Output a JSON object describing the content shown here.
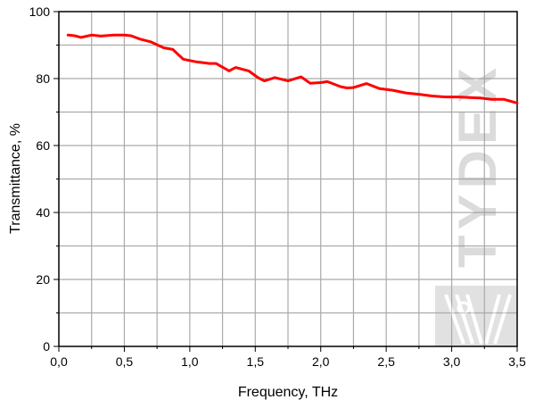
{
  "chart_data": {
    "type": "line",
    "title": "",
    "xlabel": "Frequency, THz",
    "ylabel": "Transmittance, %",
    "xlim": [
      0,
      3.5
    ],
    "ylim": [
      0,
      100
    ],
    "xticks": [
      "0,0",
      "0,5",
      "1,0",
      "1,5",
      "2,0",
      "2,5",
      "3,0",
      "3,5"
    ],
    "xtick_values": [
      0,
      0.5,
      1.0,
      1.5,
      2.0,
      2.5,
      3.0,
      3.5
    ],
    "yticks": [
      "0",
      "20",
      "40",
      "60",
      "80",
      "100"
    ],
    "ytick_values": [
      0,
      20,
      40,
      60,
      80,
      100
    ],
    "grid": true,
    "grid_x_step": 0.25,
    "grid_y_step": 10,
    "series": [
      {
        "color": "#ff0000",
        "x": [
          0.07,
          0.12,
          0.17,
          0.25,
          0.32,
          0.42,
          0.5,
          0.55,
          0.62,
          0.7,
          0.8,
          0.87,
          0.95,
          1.05,
          1.15,
          1.2,
          1.3,
          1.35,
          1.45,
          1.52,
          1.57,
          1.65,
          1.75,
          1.85,
          1.92,
          2.0,
          2.05,
          2.15,
          2.2,
          2.25,
          2.35,
          2.45,
          2.55,
          2.65,
          2.75,
          2.85,
          2.95,
          3.05,
          3.15,
          3.22,
          3.3,
          3.4,
          3.5
        ],
        "y": [
          93,
          92.8,
          92.3,
          93,
          92.7,
          93,
          93,
          92.8,
          91.8,
          91,
          89.2,
          88.7,
          85.8,
          85,
          84.5,
          84.5,
          82.3,
          83.3,
          82.3,
          80.3,
          79.3,
          80.3,
          79.3,
          80.5,
          78.6,
          78.8,
          79.1,
          77.6,
          77.2,
          77.3,
          78.5,
          77,
          76.5,
          75.7,
          75.3,
          74.8,
          74.5,
          74.5,
          74.3,
          74.2,
          73.8,
          73.8,
          72.7
        ]
      }
    ],
    "watermark": "TYDEX"
  }
}
